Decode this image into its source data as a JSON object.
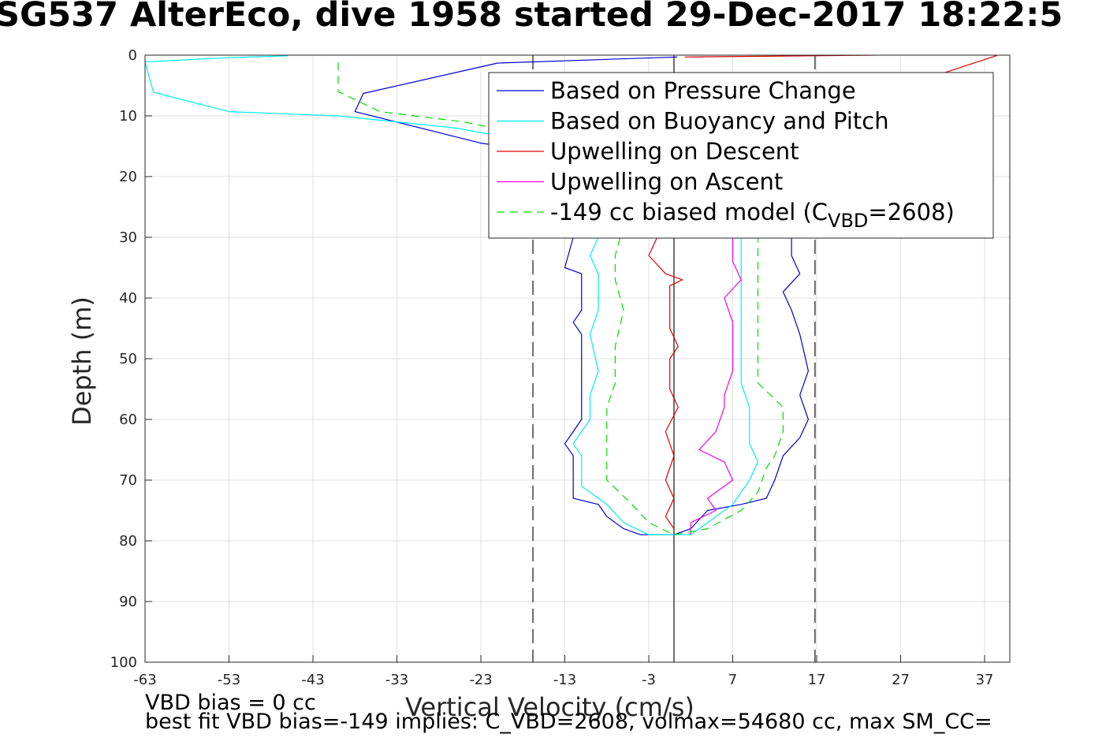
{
  "chart_data": {
    "type": "line",
    "title": "SG537 AlterEco, dive 1958 started 29-Dec-2017 18:22:5",
    "xlabel": "Vertical Velocity (cm/s)",
    "ylabel": "Depth (m)",
    "xlim": [
      -63,
      40
    ],
    "ylim": [
      0,
      100
    ],
    "y_reversed": true,
    "grid": true,
    "xticks": [
      -63,
      -53,
      -43,
      -33,
      -23,
      -13,
      -3,
      7,
      17,
      27,
      37
    ],
    "yticks": [
      0,
      10,
      20,
      30,
      40,
      50,
      60,
      70,
      80,
      90,
      100
    ],
    "legend_position": "top-right",
    "vertical_lines": [
      {
        "x": -16.8,
        "style": "dashed",
        "color": "#404040"
      },
      {
        "x": 0,
        "style": "solid",
        "color": "#404040"
      },
      {
        "x": 16.8,
        "style": "dashed",
        "color": "#404040"
      }
    ],
    "series": [
      {
        "name": "Based on Pressure Change",
        "color": "#0000cc",
        "dash": "",
        "points": [
          [
            0.4,
            0.3
          ],
          [
            -21,
            1.3
          ],
          [
            -37,
            6.3
          ],
          [
            -38,
            9.3
          ],
          [
            -23,
            14.5
          ],
          [
            -15,
            16
          ],
          [
            -10,
            18
          ],
          [
            -11,
            24
          ],
          [
            -12,
            30
          ],
          [
            -13,
            35
          ],
          [
            -11,
            36
          ],
          [
            -11,
            42
          ],
          [
            -12,
            44
          ],
          [
            -11,
            46
          ],
          [
            -11,
            52
          ],
          [
            -11,
            56
          ],
          [
            -11,
            60
          ],
          [
            -12,
            62
          ],
          [
            -13,
            64
          ],
          [
            -12,
            66
          ],
          [
            -12,
            70
          ],
          [
            -12,
            73
          ],
          [
            -9,
            74
          ],
          [
            -8,
            76
          ],
          [
            -6,
            78
          ],
          [
            -4,
            79
          ],
          [
            0,
            79
          ],
          [
            2,
            78
          ],
          [
            4,
            75
          ],
          [
            8,
            74
          ],
          [
            11,
            73
          ],
          [
            12,
            70
          ],
          [
            13,
            66
          ],
          [
            15,
            63
          ],
          [
            16,
            60
          ],
          [
            15,
            56
          ],
          [
            16,
            52
          ],
          [
            15,
            46
          ],
          [
            14,
            42
          ],
          [
            13,
            39
          ],
          [
            15,
            36
          ],
          [
            14,
            33
          ],
          [
            14,
            30
          ],
          [
            15,
            25
          ],
          [
            16,
            20
          ]
        ]
      },
      {
        "name": "Based on Buoyancy and Pitch",
        "color": "#00eeee",
        "dash": "",
        "points": [
          [
            -46,
            0.1
          ],
          [
            -53,
            0.4
          ],
          [
            -63,
            1.1
          ],
          [
            -62,
            6.1
          ],
          [
            -53,
            9.3
          ],
          [
            -40,
            10
          ],
          [
            -26,
            12
          ],
          [
            -18,
            14
          ],
          [
            -12,
            17
          ],
          [
            -10,
            19
          ],
          [
            -8,
            22
          ],
          [
            -9,
            26
          ],
          [
            -9,
            30
          ],
          [
            -10,
            33
          ],
          [
            -9,
            36
          ],
          [
            -9,
            42
          ],
          [
            -10,
            46
          ],
          [
            -9,
            52
          ],
          [
            -10,
            56
          ],
          [
            -10,
            60
          ],
          [
            -12,
            64
          ],
          [
            -11,
            66
          ],
          [
            -11,
            71
          ],
          [
            -8,
            74
          ],
          [
            -6,
            77
          ],
          [
            -3,
            79
          ],
          [
            2,
            79
          ],
          [
            4,
            77
          ],
          [
            7,
            74
          ],
          [
            9,
            70
          ],
          [
            10,
            67
          ],
          [
            9,
            64
          ],
          [
            9,
            58
          ],
          [
            8,
            54
          ],
          [
            8,
            46
          ],
          [
            8,
            40
          ],
          [
            8,
            33
          ],
          [
            8,
            30
          ],
          [
            9,
            25
          ],
          [
            10,
            22
          ]
        ]
      },
      {
        "name": "Upwelling on Descent",
        "color": "#dd0000",
        "dash": "",
        "points": [
          [
            1.3,
            0.3
          ],
          [
            39,
            -0.2
          ],
          [
            -1,
            18
          ],
          [
            -2,
            30
          ],
          [
            -3,
            33
          ],
          [
            -1,
            36
          ],
          [
            1,
            37
          ],
          [
            -0.5,
            38
          ],
          [
            -0.5,
            42
          ],
          [
            -0.5,
            45
          ],
          [
            0.5,
            48
          ],
          [
            -0.5,
            50
          ],
          [
            -0.5,
            55
          ],
          [
            0.5,
            58
          ],
          [
            -1,
            62
          ],
          [
            0,
            66
          ],
          [
            -1,
            70
          ],
          [
            0,
            73
          ],
          [
            -1,
            76
          ],
          [
            0,
            78
          ]
        ]
      },
      {
        "name": "Upwelling on Ascent",
        "color": "#ee00ee",
        "dash": "",
        "points": [
          [
            2,
            79
          ],
          [
            2,
            77
          ],
          [
            5,
            75
          ],
          [
            4,
            73
          ],
          [
            7,
            70
          ],
          [
            6,
            67
          ],
          [
            3,
            65
          ],
          [
            5,
            62
          ],
          [
            6,
            58
          ],
          [
            6,
            56
          ],
          [
            7,
            52
          ],
          [
            7,
            47
          ],
          [
            7,
            44
          ],
          [
            6,
            40
          ],
          [
            8,
            37
          ],
          [
            7,
            34
          ],
          [
            7,
            30
          ],
          [
            7,
            25
          ]
        ]
      },
      {
        "name": "-149 cc biased model (C<sub>VBD</sub>=2608)",
        "legend_parts": {
          "before": "-149 cc biased model (C",
          "sub": "VBD",
          "after": "=2608)"
        },
        "color": "#00dd00",
        "dash": "10,7",
        "points": [
          [
            -40,
            1.2
          ],
          [
            -40,
            6
          ],
          [
            -35,
            9.3
          ],
          [
            -25,
            11
          ],
          [
            -18,
            13
          ],
          [
            -12,
            16
          ],
          [
            -8,
            18
          ],
          [
            -6,
            22
          ],
          [
            -6,
            28
          ],
          [
            -7,
            33
          ],
          [
            -7,
            37
          ],
          [
            -6,
            42
          ],
          [
            -7,
            48
          ],
          [
            -7,
            54
          ],
          [
            -8,
            58
          ],
          [
            -8,
            62
          ],
          [
            -8,
            66
          ],
          [
            -8,
            70
          ],
          [
            -5,
            74
          ],
          [
            -3,
            77
          ],
          [
            0,
            79
          ],
          [
            4,
            78
          ],
          [
            8,
            75
          ],
          [
            10,
            72
          ],
          [
            11,
            68
          ],
          [
            12,
            66
          ],
          [
            13,
            62
          ],
          [
            13,
            58
          ],
          [
            10,
            54
          ],
          [
            10,
            50
          ],
          [
            10,
            46
          ],
          [
            10,
            42
          ],
          [
            10,
            38
          ],
          [
            10,
            34
          ],
          [
            10,
            30
          ]
        ]
      }
    ],
    "annotations": [
      "VBD bias = 0 cc",
      "best fit VBD bias=-149 implies: C_VBD=2608, volmax=54680 cc, max SM_CC="
    ]
  }
}
